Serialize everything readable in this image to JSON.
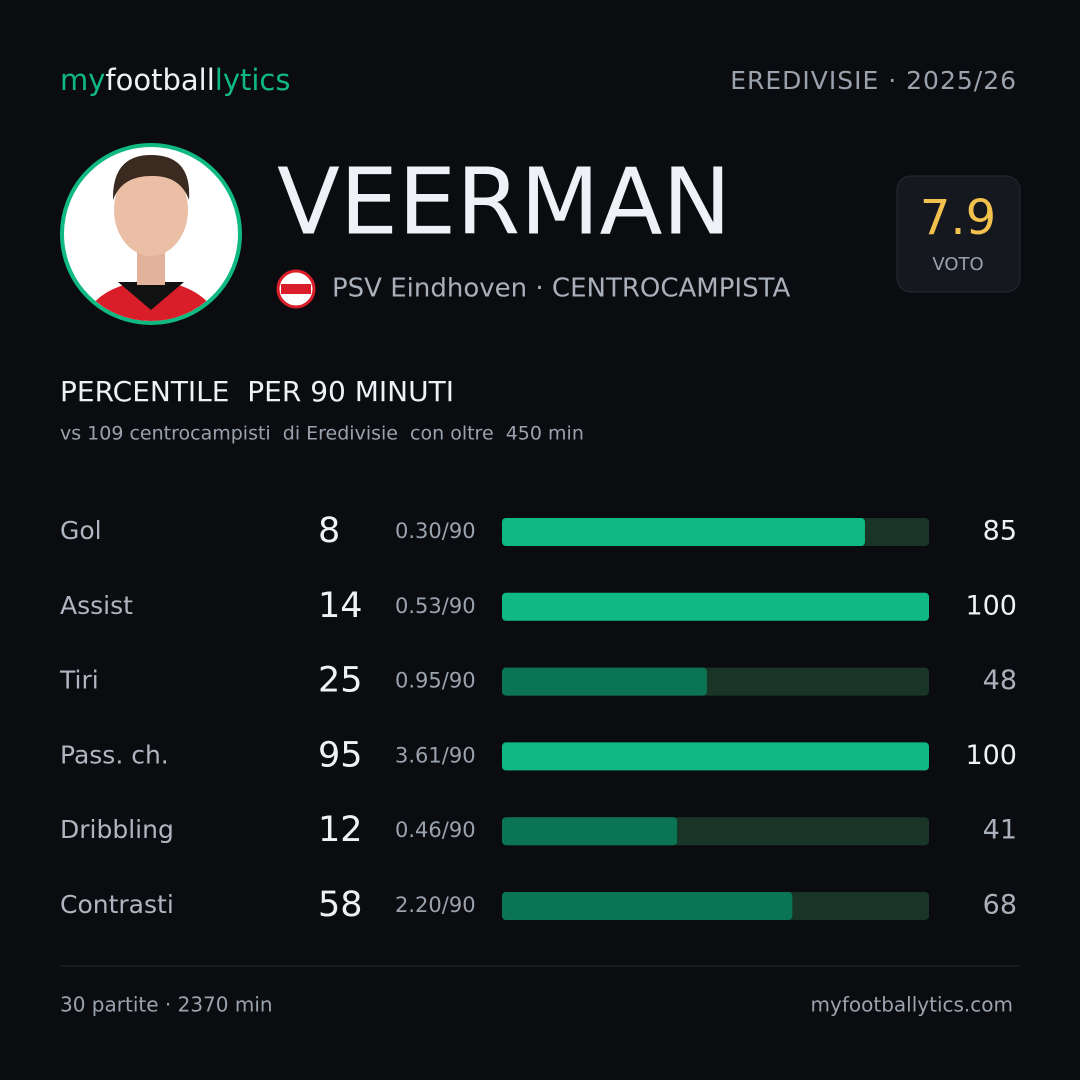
{
  "brand": [
    {
      "text": "my",
      "color": "#10b981"
    },
    {
      "text": "football",
      "color": "#eef1f5"
    },
    {
      "text": "lytics",
      "color": "#10b981"
    }
  ],
  "league": "EREDIVISIE · 2025/26",
  "player": {
    "name": "VEERMAN",
    "team_role": "PSV Eindhoven · CENTROCAMPISTA"
  },
  "rating": {
    "value": 7.9,
    "label": "VOTO"
  },
  "section": {
    "title": "PERCENTILE  PER 90 MINUTI",
    "subtitle": "vs 109 centrocampisti  di Eredivisie  con oltre  450 min"
  },
  "stats": {
    "xlim": [
      0,
      100
    ],
    "rows": [
      {
        "label": "Gol",
        "total": 8,
        "per90": "0.30/90",
        "percentile": 85,
        "color": "#10b981"
      },
      {
        "label": "Assist",
        "total": 14,
        "per90": "0.53/90",
        "percentile": 100,
        "color": "#10b981"
      },
      {
        "label": "Tiri",
        "total": 25,
        "per90": "0.95/90",
        "percentile": 48,
        "color": "#0b7553"
      },
      {
        "label": "Pass. ch.",
        "total": 95,
        "per90": "3.61/90",
        "percentile": 100,
        "color": "#10b981"
      },
      {
        "label": "Dribbling",
        "total": 12,
        "per90": "0.46/90",
        "percentile": 41,
        "color": "#0b7553"
      },
      {
        "label": "Contrasti",
        "total": 58,
        "per90": "2.20/90",
        "percentile": 68,
        "color": "#0b7553"
      }
    ]
  },
  "footer": {
    "left": "30 partite · 2370 min",
    "right": "myfootballytics.com"
  }
}
